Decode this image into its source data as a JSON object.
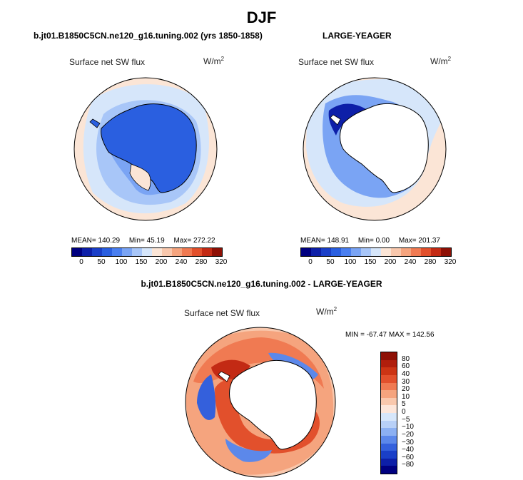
{
  "title": "DJF",
  "chart_data": [
    {
      "type": "heatmap",
      "projection": "south-polar-stereographic",
      "subtitle": "b.jt01.B1850C5CN.ne120_g16.tuning.002 (yrs 1850-1858)",
      "panel_title": "Surface net SW flux",
      "units": "W/m",
      "units_exp": "2",
      "stats": {
        "mean_label": "MEAN=",
        "mean": "140.29",
        "min_label": "Min=",
        "min": "45.19",
        "max_label": "Max=",
        "max": "272.22"
      },
      "colorbar_ticks": [
        "0",
        "50",
        "100",
        "150",
        "200",
        "240",
        "280",
        "320"
      ],
      "contour_levels": [
        0,
        25,
        50,
        75,
        100,
        125,
        150,
        175,
        200,
        220,
        240,
        260,
        280,
        300,
        320
      ]
    },
    {
      "type": "heatmap",
      "projection": "south-polar-stereographic",
      "subtitle": "LARGE-YEAGER",
      "panel_title": "Surface net SW flux",
      "units": "W/m",
      "units_exp": "2",
      "stats": {
        "mean_label": "MEAN=",
        "mean": "148.91",
        "min_label": "Min=",
        "min": "0.00",
        "max_label": "Max=",
        "max": "201.37"
      },
      "colorbar_ticks": [
        "0",
        "50",
        "100",
        "150",
        "200",
        "240",
        "280",
        "320"
      ],
      "contour_levels": [
        0,
        25,
        50,
        75,
        100,
        125,
        150,
        175,
        200,
        220,
        240,
        260,
        280,
        300,
        320
      ]
    },
    {
      "type": "heatmap",
      "projection": "south-polar-stereographic",
      "subtitle": "b.jt01.B1850C5CN.ne120_g16.tuning.002 - LARGE-YEAGER",
      "panel_title": "Surface net SW flux",
      "units": "W/m",
      "units_exp": "2",
      "stats": {
        "text": "MIN = -67.47  MAX = 142.56",
        "min": -67.47,
        "max": 142.56
      },
      "colorbar_ticks": [
        "80",
        "60",
        "40",
        "30",
        "20",
        "10",
        "5",
        "0",
        "−5",
        "−10",
        "−20",
        "−30",
        "−40",
        "−60",
        "−80"
      ]
    }
  ],
  "colors": {
    "diverging": [
      "#000080",
      "#0d1fa8",
      "#1a3fc8",
      "#2a5fe0",
      "#4a7ff0",
      "#7aa4f4",
      "#a8c6f8",
      "#d6e6fa",
      "#fbe5d6",
      "#f9c8ad",
      "#f5a47e",
      "#f07a52",
      "#e2502c",
      "#c32a14",
      "#8e1005"
    ],
    "diff_scale": [
      "#8e1005",
      "#b01e0c",
      "#cc3414",
      "#e2502c",
      "#f07a52",
      "#f5a47e",
      "#f9c8ad",
      "#fde6da",
      "#d6e6fa",
      "#b8d0f7",
      "#8cb0f2",
      "#5c88ea",
      "#3460dc",
      "#1a3fc8",
      "#0d1fa8",
      "#000080"
    ]
  }
}
